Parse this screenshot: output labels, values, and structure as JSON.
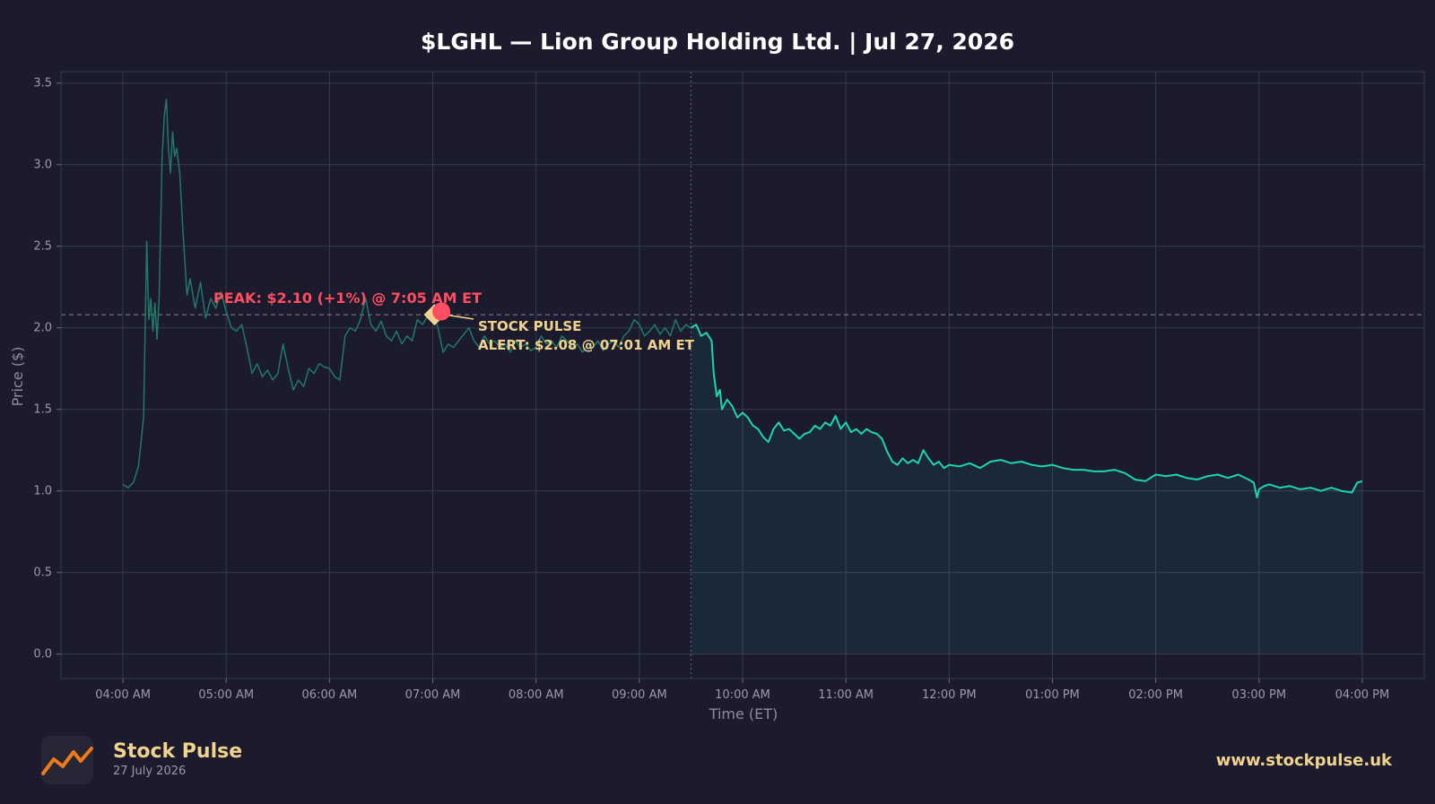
{
  "chart_data": {
    "type": "line",
    "title": "$LGHL — Lion Group Holding Ltd.  |  Jul 27, 2026",
    "xlabel": "Time (ET)",
    "ylabel": "Price ($)",
    "ylim": [
      -0.15,
      3.57
    ],
    "xlim": [
      3.4,
      16.6
    ],
    "yticks": [
      0.0,
      0.5,
      1.0,
      1.5,
      2.0,
      2.5,
      3.0,
      3.5
    ],
    "ytick_labels": [
      "0.0",
      "0.5",
      "1.0",
      "1.5",
      "2.0",
      "2.5",
      "3.0",
      "3.5"
    ],
    "xticks": [
      4,
      5,
      6,
      7,
      8,
      9,
      10,
      11,
      12,
      13,
      14,
      15,
      16
    ],
    "xtick_labels": [
      "04:00 AM",
      "05:00 AM",
      "06:00 AM",
      "07:00 AM",
      "08:00 AM",
      "09:00 AM",
      "10:00 AM",
      "11:00 AM",
      "12:00 PM",
      "01:00 PM",
      "02:00 PM",
      "03:00 PM",
      "04:00 PM"
    ],
    "grid": true,
    "market_open_hour": 9.5,
    "reference_line_y": 2.08,
    "series": [
      {
        "segment": "premarket",
        "color": "#1f7a68",
        "x": [
          4.0,
          4.05,
          4.1,
          4.15,
          4.2,
          4.23,
          4.25,
          4.27,
          4.29,
          4.31,
          4.33,
          4.35,
          4.38,
          4.4,
          4.42,
          4.44,
          4.46,
          4.48,
          4.5,
          4.52,
          4.55,
          4.58,
          4.62,
          4.65,
          4.7,
          4.75,
          4.8,
          4.85,
          4.9,
          4.95,
          5.0,
          5.05,
          5.1,
          5.15,
          5.2,
          5.25,
          5.3,
          5.35,
          5.4,
          5.45,
          5.5,
          5.55,
          5.6,
          5.65,
          5.7,
          5.75,
          5.8,
          5.85,
          5.9,
          5.95,
          6.0,
          6.05,
          6.1,
          6.15,
          6.2,
          6.25,
          6.3,
          6.35,
          6.4,
          6.45,
          6.5,
          6.55,
          6.6,
          6.65,
          6.7,
          6.75,
          6.8,
          6.85,
          6.9,
          6.95,
          7.0,
          7.05,
          7.1,
          7.15,
          7.2,
          7.25,
          7.3,
          7.35,
          7.4,
          7.45,
          7.5,
          7.55,
          7.6,
          7.65,
          7.7,
          7.75,
          7.8,
          7.85,
          7.9,
          7.95,
          8.0,
          8.05,
          8.1,
          8.15,
          8.2,
          8.25,
          8.3,
          8.35,
          8.4,
          8.45,
          8.5,
          8.55,
          8.6,
          8.65,
          8.7,
          8.75,
          8.8,
          8.85,
          8.9,
          8.95,
          9.0,
          9.05,
          9.1,
          9.15,
          9.2,
          9.25,
          9.3,
          9.35,
          9.4,
          9.45,
          9.5
        ],
        "y": [
          1.04,
          1.02,
          1.05,
          1.15,
          1.45,
          2.53,
          2.05,
          2.18,
          1.98,
          2.15,
          1.93,
          2.18,
          3.05,
          3.3,
          3.4,
          3.1,
          2.95,
          3.2,
          3.05,
          3.1,
          2.95,
          2.6,
          2.2,
          2.3,
          2.12,
          2.28,
          2.06,
          2.18,
          2.12,
          2.22,
          2.1,
          2.0,
          1.98,
          2.02,
          1.88,
          1.72,
          1.78,
          1.7,
          1.74,
          1.68,
          1.72,
          1.9,
          1.75,
          1.62,
          1.68,
          1.64,
          1.75,
          1.72,
          1.78,
          1.76,
          1.75,
          1.7,
          1.68,
          1.95,
          2.0,
          1.98,
          2.05,
          2.18,
          2.02,
          1.98,
          2.04,
          1.95,
          1.92,
          1.98,
          1.9,
          1.95,
          1.92,
          2.05,
          2.02,
          2.07,
          2.1,
          2.0,
          1.85,
          1.9,
          1.88,
          1.92,
          1.96,
          2.0,
          1.92,
          1.88,
          1.95,
          1.9,
          1.92,
          1.88,
          1.9,
          1.85,
          1.92,
          1.88,
          1.9,
          1.86,
          1.88,
          1.95,
          1.9,
          1.92,
          1.88,
          1.95,
          1.92,
          1.88,
          1.9,
          1.85,
          1.9,
          1.88,
          1.92,
          1.86,
          1.9,
          1.92,
          1.88,
          1.95,
          1.98,
          2.05,
          2.02,
          1.95,
          1.98,
          2.02,
          1.96,
          2.0,
          1.95,
          2.05,
          1.98,
          2.02,
          2.0
        ]
      },
      {
        "segment": "regular",
        "color": "#1ed4ad",
        "x": [
          9.5,
          9.55,
          9.6,
          9.65,
          9.7,
          9.72,
          9.75,
          9.78,
          9.8,
          9.85,
          9.9,
          9.95,
          10.0,
          10.05,
          10.1,
          10.15,
          10.2,
          10.25,
          10.3,
          10.35,
          10.4,
          10.45,
          10.5,
          10.55,
          10.6,
          10.65,
          10.7,
          10.75,
          10.8,
          10.85,
          10.9,
          10.95,
          11.0,
          11.05,
          11.1,
          11.15,
          11.2,
          11.25,
          11.3,
          11.35,
          11.4,
          11.45,
          11.5,
          11.55,
          11.6,
          11.65,
          11.7,
          11.75,
          11.8,
          11.85,
          11.9,
          11.95,
          12.0,
          12.1,
          12.2,
          12.3,
          12.4,
          12.5,
          12.6,
          12.7,
          12.8,
          12.9,
          13.0,
          13.1,
          13.2,
          13.3,
          13.4,
          13.5,
          13.6,
          13.7,
          13.8,
          13.9,
          14.0,
          14.1,
          14.2,
          14.3,
          14.4,
          14.5,
          14.6,
          14.7,
          14.8,
          14.9,
          14.95,
          14.98,
          15.0,
          15.05,
          15.1,
          15.2,
          15.3,
          15.4,
          15.5,
          15.6,
          15.7,
          15.8,
          15.9,
          15.95,
          16.0
        ],
        "y": [
          2.0,
          2.02,
          1.95,
          1.97,
          1.92,
          1.72,
          1.58,
          1.62,
          1.5,
          1.56,
          1.52,
          1.45,
          1.48,
          1.45,
          1.4,
          1.38,
          1.33,
          1.3,
          1.38,
          1.42,
          1.37,
          1.38,
          1.35,
          1.32,
          1.35,
          1.36,
          1.4,
          1.38,
          1.42,
          1.4,
          1.46,
          1.38,
          1.42,
          1.36,
          1.38,
          1.35,
          1.38,
          1.36,
          1.35,
          1.32,
          1.24,
          1.18,
          1.16,
          1.2,
          1.17,
          1.19,
          1.17,
          1.25,
          1.2,
          1.16,
          1.18,
          1.14,
          1.16,
          1.15,
          1.17,
          1.14,
          1.18,
          1.19,
          1.17,
          1.18,
          1.16,
          1.15,
          1.16,
          1.14,
          1.13,
          1.13,
          1.12,
          1.12,
          1.13,
          1.11,
          1.07,
          1.06,
          1.1,
          1.09,
          1.1,
          1.08,
          1.07,
          1.09,
          1.1,
          1.08,
          1.1,
          1.07,
          1.05,
          0.96,
          1.01,
          1.03,
          1.04,
          1.02,
          1.03,
          1.01,
          1.02,
          1.0,
          1.02,
          1.0,
          0.99,
          1.05,
          1.06
        ]
      }
    ],
    "annotations": {
      "peak": {
        "x": 7.083,
        "y": 2.1,
        "text": "PEAK: $2.10 (+1%) @ 7:05 AM ET",
        "color": "#ff4d61"
      },
      "alert": {
        "x": 7.017,
        "y": 2.08,
        "line1": "STOCK PULSE",
        "line2": "ALERT: $2.08 @ 07:01 AM ET",
        "color": "#f2d38e"
      }
    }
  },
  "footer": {
    "brand_name": "Stock Pulse",
    "brand_date": "27 July 2026",
    "url": "www.stockpulse.uk"
  }
}
